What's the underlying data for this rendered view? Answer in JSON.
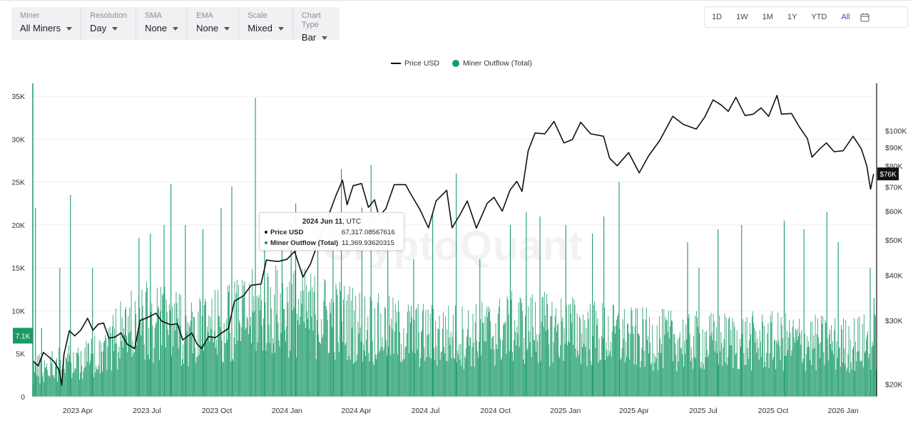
{
  "filters": [
    {
      "label": "Miner",
      "value": "All Miners"
    },
    {
      "label": "Resolution",
      "value": "Day"
    },
    {
      "label": "SMA",
      "value": "None"
    },
    {
      "label": "EMA",
      "value": "None"
    },
    {
      "label": "Scale",
      "value": "Mixed"
    },
    {
      "label": "Chart Type",
      "value": "Bar"
    }
  ],
  "ranges": [
    "1D",
    "1W",
    "1M",
    "1Y",
    "YTD",
    "All"
  ],
  "active_range": "All",
  "watermark": "CryptoQuant",
  "colors": {
    "bar": "#1a9a68",
    "price": "#111111",
    "active": "#3b4fd6"
  },
  "tooltip": {
    "date": "2024 Jun 11",
    "tz": ", UTC",
    "price_label": "Price USD",
    "price_value": "67,317.08567616",
    "outflow_label": "Miner Outflow (Total)",
    "outflow_value": "11,369.93620315"
  },
  "chart_data": {
    "type": "bar",
    "title": "",
    "legend": [
      {
        "name": "Price USD",
        "kind": "line",
        "color": "#111111"
      },
      {
        "name": "Miner Outflow (Total)",
        "kind": "bar",
        "color": "#1a9a68"
      }
    ],
    "x_range": [
      "2023-02-01",
      "2026-02-13"
    ],
    "x_ticks": [
      {
        "date": "2023-04-01",
        "label": "2023 Apr"
      },
      {
        "date": "2023-07-01",
        "label": "2023 Jul"
      },
      {
        "date": "2023-10-01",
        "label": "2023 Oct"
      },
      {
        "date": "2024-01-01",
        "label": "2024 Jan"
      },
      {
        "date": "2024-04-01",
        "label": "2024 Apr"
      },
      {
        "date": "2024-07-01",
        "label": "2024 Jul"
      },
      {
        "date": "2024-10-01",
        "label": "2024 Oct"
      },
      {
        "date": "2025-01-01",
        "label": "2025 Jan"
      },
      {
        "date": "2025-04-01",
        "label": "2025 Apr"
      },
      {
        "date": "2025-07-01",
        "label": "2025 Jul"
      },
      {
        "date": "2025-10-01",
        "label": "2025 Oct"
      },
      {
        "date": "2026-01-01",
        "label": "2026 Jan"
      }
    ],
    "left_axis": {
      "min": 0,
      "max": 36500,
      "ticks": [
        0,
        5000,
        10000,
        15000,
        20000,
        25000,
        30000,
        35000
      ],
      "tick_labels": [
        "0",
        "5K",
        "10K",
        "15K",
        "20K",
        "25K",
        "30K",
        "35K"
      ],
      "current_label": "7.1K",
      "current_value": 7100
    },
    "right_axis": {
      "scale": "log",
      "min": 18500,
      "max": 135000,
      "ticks": [
        20000,
        30000,
        40000,
        50000,
        60000,
        70000,
        80000,
        90000,
        100000
      ],
      "tick_labels": [
        "$20K",
        "$30K",
        "$40K",
        "$50K",
        "$60K",
        "$70K",
        "$80K",
        "$90K",
        "$100K"
      ],
      "current_label": "$76K",
      "current_value": 76000
    },
    "outflow_envelope": [
      [
        "2023-02-01",
        4500
      ],
      [
        "2023-03-01",
        5500
      ],
      [
        "2023-04-15",
        6500
      ],
      [
        "2023-05-20",
        10000
      ],
      [
        "2023-06-15",
        13000
      ],
      [
        "2023-07-20",
        12500
      ],
      [
        "2023-09-01",
        11000
      ],
      [
        "2023-10-15",
        12500
      ],
      [
        "2023-12-01",
        15000
      ],
      [
        "2024-01-20",
        14500
      ],
      [
        "2024-03-01",
        13500
      ],
      [
        "2024-05-01",
        11500
      ],
      [
        "2024-07-01",
        10500
      ],
      [
        "2024-09-01",
        10500
      ],
      [
        "2024-11-01",
        12000
      ],
      [
        "2025-01-01",
        11500
      ],
      [
        "2025-04-01",
        10000
      ],
      [
        "2025-07-01",
        9500
      ],
      [
        "2025-10-01",
        9500
      ],
      [
        "2026-01-01",
        9000
      ],
      [
        "2026-02-13",
        9500
      ]
    ],
    "outflow_spikes": [
      [
        "2023-02-04",
        22000
      ],
      [
        "2023-02-12",
        8000
      ],
      [
        "2023-03-08",
        15000
      ],
      [
        "2023-03-22",
        23500
      ],
      [
        "2023-04-20",
        15000
      ],
      [
        "2023-06-20",
        18500
      ],
      [
        "2023-07-05",
        19000
      ],
      [
        "2023-07-23",
        20000
      ],
      [
        "2023-08-01",
        24800
      ],
      [
        "2023-08-20",
        20000
      ],
      [
        "2023-09-12",
        19500
      ],
      [
        "2023-10-06",
        22000
      ],
      [
        "2023-10-20",
        24500
      ],
      [
        "2023-11-20",
        34800
      ],
      [
        "2023-12-02",
        19500
      ],
      [
        "2023-12-25",
        20500
      ],
      [
        "2024-01-06",
        19000
      ],
      [
        "2024-01-12",
        22500
      ],
      [
        "2024-02-10",
        20000
      ],
      [
        "2024-03-01",
        21000
      ],
      [
        "2024-03-12",
        26500
      ],
      [
        "2024-04-08",
        22000
      ],
      [
        "2024-04-20",
        27000
      ],
      [
        "2024-05-12",
        21000
      ],
      [
        "2024-06-15",
        16000
      ],
      [
        "2024-07-10",
        21500
      ],
      [
        "2024-08-10",
        26000
      ],
      [
        "2024-09-10",
        16000
      ],
      [
        "2024-10-20",
        20000
      ],
      [
        "2024-11-10",
        21500
      ],
      [
        "2024-11-28",
        21000
      ],
      [
        "2025-01-01",
        20000
      ],
      [
        "2025-02-05",
        19000
      ],
      [
        "2025-02-20",
        21000
      ],
      [
        "2025-03-12",
        25000
      ],
      [
        "2025-06-10",
        18000
      ],
      [
        "2025-06-25",
        15000
      ],
      [
        "2025-07-20",
        19500
      ],
      [
        "2025-08-20",
        20000
      ],
      [
        "2025-10-15",
        20500
      ],
      [
        "2025-11-10",
        19500
      ],
      [
        "2025-12-10",
        21500
      ],
      [
        "2025-12-25",
        18000
      ],
      [
        "2026-02-05",
        15000
      ],
      [
        "2026-02-10",
        11500
      ]
    ],
    "price": [
      [
        "2023-02-01",
        23200
      ],
      [
        "2023-02-08",
        22500
      ],
      [
        "2023-02-15",
        24500
      ],
      [
        "2023-02-22",
        23800
      ],
      [
        "2023-03-01",
        23100
      ],
      [
        "2023-03-08",
        21800
      ],
      [
        "2023-03-11",
        19900
      ],
      [
        "2023-03-14",
        24200
      ],
      [
        "2023-03-21",
        28100
      ],
      [
        "2023-03-28",
        27200
      ],
      [
        "2023-04-05",
        28200
      ],
      [
        "2023-04-14",
        30400
      ],
      [
        "2023-04-21",
        28200
      ],
      [
        "2023-04-28",
        29300
      ],
      [
        "2023-05-05",
        29500
      ],
      [
        "2023-05-12",
        26800
      ],
      [
        "2023-05-20",
        27000
      ],
      [
        "2023-05-28",
        27700
      ],
      [
        "2023-06-05",
        25800
      ],
      [
        "2023-06-15",
        25100
      ],
      [
        "2023-06-22",
        30000
      ],
      [
        "2023-07-01",
        30500
      ],
      [
        "2023-07-13",
        31400
      ],
      [
        "2023-07-20",
        29900
      ],
      [
        "2023-08-01",
        29200
      ],
      [
        "2023-08-10",
        29400
      ],
      [
        "2023-08-17",
        26500
      ],
      [
        "2023-08-29",
        27700
      ],
      [
        "2023-09-05",
        25800
      ],
      [
        "2023-09-11",
        25100
      ],
      [
        "2023-09-20",
        27100
      ],
      [
        "2023-09-29",
        26900
      ],
      [
        "2023-10-05",
        27500
      ],
      [
        "2023-10-16",
        28500
      ],
      [
        "2023-10-24",
        33900
      ],
      [
        "2023-11-05",
        35100
      ],
      [
        "2023-11-15",
        37500
      ],
      [
        "2023-11-28",
        37800
      ],
      [
        "2023-12-05",
        44000
      ],
      [
        "2023-12-20",
        43600
      ],
      [
        "2024-01-01",
        44200
      ],
      [
        "2024-01-11",
        46500
      ],
      [
        "2024-01-22",
        39500
      ],
      [
        "2024-02-01",
        43000
      ],
      [
        "2024-02-15",
        52000
      ],
      [
        "2024-02-28",
        61000
      ],
      [
        "2024-03-05",
        66000
      ],
      [
        "2024-03-14",
        73000
      ],
      [
        "2024-03-20",
        62500
      ],
      [
        "2024-03-28",
        70500
      ],
      [
        "2024-04-08",
        71500
      ],
      [
        "2024-04-17",
        61500
      ],
      [
        "2024-04-25",
        64500
      ],
      [
        "2024-05-01",
        58000
      ],
      [
        "2024-05-10",
        61000
      ],
      [
        "2024-05-21",
        71000
      ],
      [
        "2024-06-05",
        71000
      ],
      [
        "2024-06-11",
        67300
      ],
      [
        "2024-06-24",
        60500
      ],
      [
        "2024-07-05",
        54000
      ],
      [
        "2024-07-15",
        64000
      ],
      [
        "2024-07-29",
        68500
      ],
      [
        "2024-08-05",
        54000
      ],
      [
        "2024-08-15",
        58500
      ],
      [
        "2024-08-25",
        64000
      ],
      [
        "2024-09-06",
        53900
      ],
      [
        "2024-09-20",
        63000
      ],
      [
        "2024-09-29",
        65500
      ],
      [
        "2024-10-10",
        60000
      ],
      [
        "2024-10-20",
        68500
      ],
      [
        "2024-10-29",
        72500
      ],
      [
        "2024-11-05",
        68000
      ],
      [
        "2024-11-13",
        88000
      ],
      [
        "2024-11-22",
        98500
      ],
      [
        "2024-12-05",
        98000
      ],
      [
        "2024-12-17",
        106000
      ],
      [
        "2024-12-30",
        92500
      ],
      [
        "2025-01-10",
        94500
      ],
      [
        "2025-01-21",
        105500
      ],
      [
        "2025-02-03",
        98000
      ],
      [
        "2025-02-20",
        96500
      ],
      [
        "2025-02-28",
        84000
      ],
      [
        "2025-03-10",
        80000
      ],
      [
        "2025-03-25",
        87000
      ],
      [
        "2025-04-08",
        76500
      ],
      [
        "2025-04-20",
        85000
      ],
      [
        "2025-05-05",
        94000
      ],
      [
        "2025-05-22",
        109500
      ],
      [
        "2025-06-05",
        104000
      ],
      [
        "2025-06-22",
        101000
      ],
      [
        "2025-07-03",
        109000
      ],
      [
        "2025-07-14",
        121500
      ],
      [
        "2025-07-25",
        117500
      ],
      [
        "2025-08-03",
        113000
      ],
      [
        "2025-08-13",
        123500
      ],
      [
        "2025-08-25",
        110000
      ],
      [
        "2025-09-05",
        111000
      ],
      [
        "2025-09-15",
        115500
      ],
      [
        "2025-09-25",
        109500
      ],
      [
        "2025-10-06",
        125000
      ],
      [
        "2025-10-12",
        111000
      ],
      [
        "2025-10-25",
        111500
      ],
      [
        "2025-11-05",
        102000
      ],
      [
        "2025-11-15",
        95000
      ],
      [
        "2025-11-21",
        84500
      ],
      [
        "2025-12-01",
        89000
      ],
      [
        "2025-12-10",
        92500
      ],
      [
        "2025-12-20",
        87500
      ],
      [
        "2026-01-01",
        88000
      ],
      [
        "2026-01-14",
        96500
      ],
      [
        "2026-01-25",
        89000
      ],
      [
        "2026-02-01",
        80000
      ],
      [
        "2026-02-06",
        69000
      ],
      [
        "2026-02-10",
        76000
      ]
    ]
  }
}
